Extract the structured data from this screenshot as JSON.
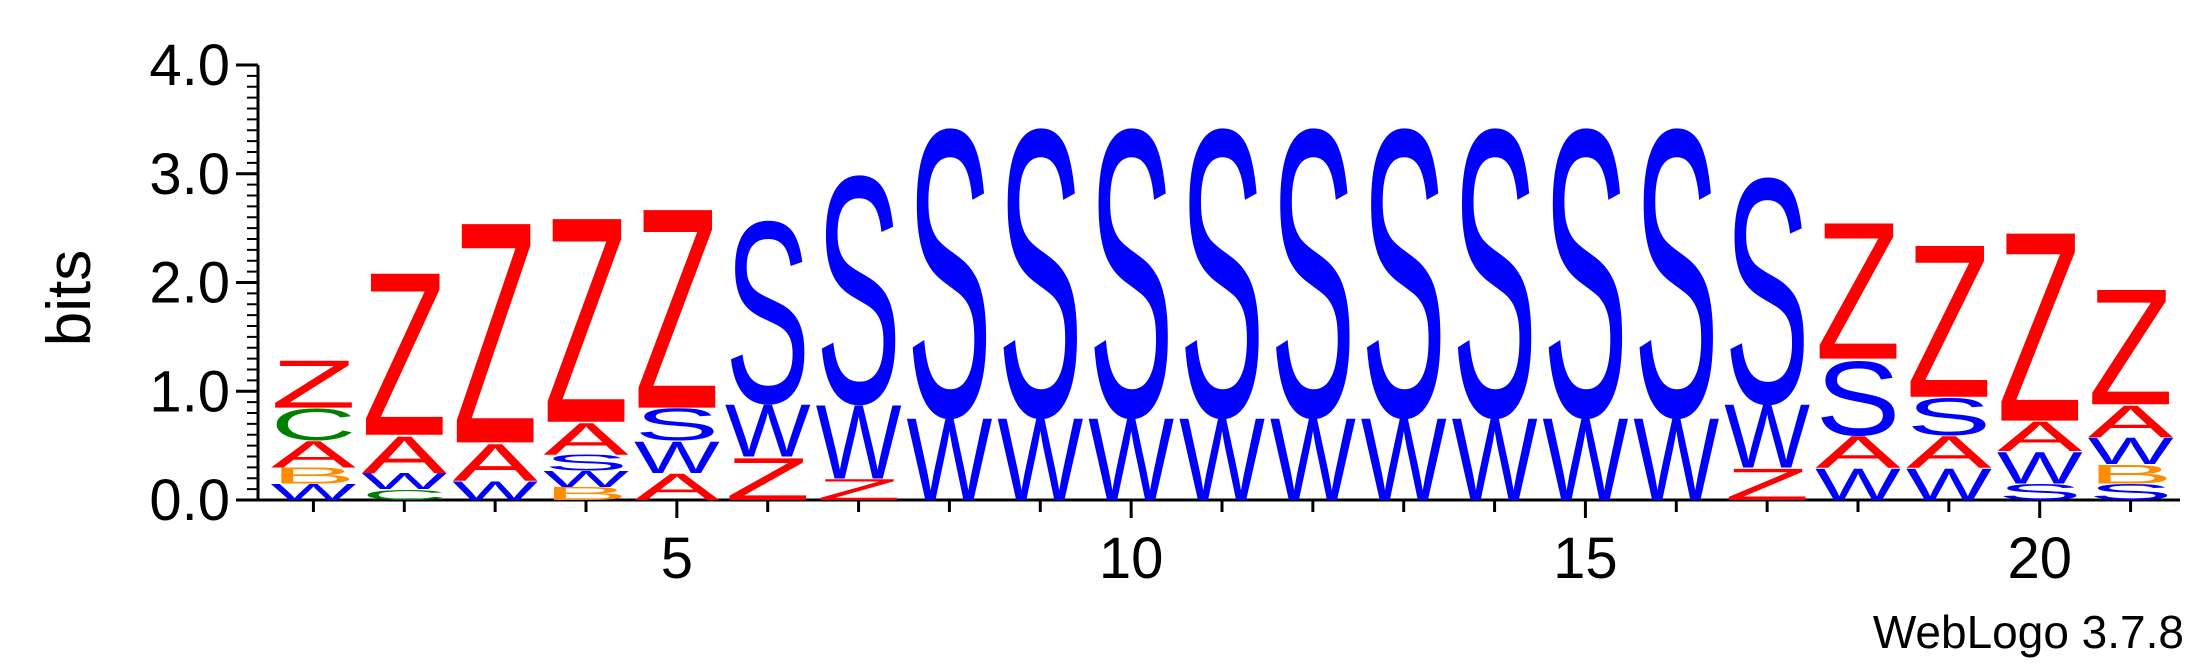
{
  "chart_data": {
    "type": "sequence-logo",
    "ylabel": "bits",
    "ylim": [
      0,
      4.0
    ],
    "y_ticks": [
      "0.0",
      "1.0",
      "2.0",
      "3.0",
      "4.0"
    ],
    "x_range": [
      1,
      21
    ],
    "x_ticks": [
      "5",
      "10",
      "15",
      "20"
    ],
    "colors": {
      "Z": "#ff0000",
      "A": "#ff0000",
      "S": "#0000ff",
      "W": "#0000ff",
      "C": "#008000",
      "B": "#ff8c00"
    },
    "positions": [
      {
        "pos": 1,
        "stack": [
          [
            "W",
            0.15
          ],
          [
            "B",
            0.15
          ],
          [
            "A",
            0.25
          ],
          [
            "C",
            0.3
          ],
          [
            "Z",
            0.45
          ]
        ]
      },
      {
        "pos": 2,
        "stack": [
          [
            "C",
            0.1
          ],
          [
            "W",
            0.15
          ],
          [
            "A",
            0.35
          ],
          [
            "Z",
            1.55
          ]
        ]
      },
      {
        "pos": 3,
        "stack": [
          [
            "W",
            0.18
          ],
          [
            "A",
            0.35
          ],
          [
            "Z",
            2.1
          ]
        ]
      },
      {
        "pos": 4,
        "stack": [
          [
            "B",
            0.12
          ],
          [
            "W",
            0.15
          ],
          [
            "S",
            0.15
          ],
          [
            "A",
            0.3
          ],
          [
            "Z",
            1.95
          ]
        ]
      },
      {
        "pos": 5,
        "stack": [
          [
            "A",
            0.25
          ],
          [
            "W",
            0.3
          ],
          [
            "S",
            0.3
          ],
          [
            "Z",
            1.9
          ]
        ]
      },
      {
        "pos": 6,
        "stack": [
          [
            "Z",
            0.4
          ],
          [
            "W",
            0.5
          ],
          [
            "S",
            1.72
          ]
        ]
      },
      {
        "pos": 7,
        "stack": [
          [
            "Z",
            0.2
          ],
          [
            "W",
            0.7
          ],
          [
            "S",
            2.15
          ]
        ]
      },
      {
        "pos": 8,
        "stack": [
          [
            "W",
            0.78
          ],
          [
            "S",
            2.72
          ]
        ]
      },
      {
        "pos": 9,
        "stack": [
          [
            "W",
            0.78
          ],
          [
            "S",
            2.72
          ]
        ]
      },
      {
        "pos": 10,
        "stack": [
          [
            "W",
            0.78
          ],
          [
            "S",
            2.72
          ]
        ]
      },
      {
        "pos": 11,
        "stack": [
          [
            "W",
            0.78
          ],
          [
            "S",
            2.72
          ]
        ]
      },
      {
        "pos": 12,
        "stack": [
          [
            "W",
            0.78
          ],
          [
            "S",
            2.72
          ]
        ]
      },
      {
        "pos": 13,
        "stack": [
          [
            "W",
            0.78
          ],
          [
            "S",
            2.72
          ]
        ]
      },
      {
        "pos": 14,
        "stack": [
          [
            "W",
            0.78
          ],
          [
            "S",
            2.72
          ]
        ]
      },
      {
        "pos": 15,
        "stack": [
          [
            "W",
            0.78
          ],
          [
            "S",
            2.72
          ]
        ]
      },
      {
        "pos": 16,
        "stack": [
          [
            "W",
            0.78
          ],
          [
            "S",
            2.72
          ]
        ]
      },
      {
        "pos": 17,
        "stack": [
          [
            "Z",
            0.3
          ],
          [
            "W",
            0.6
          ],
          [
            "S",
            2.13
          ]
        ]
      },
      {
        "pos": 18,
        "stack": [
          [
            "W",
            0.3
          ],
          [
            "A",
            0.3
          ],
          [
            "S",
            0.7
          ],
          [
            "Z",
            1.3
          ]
        ]
      },
      {
        "pos": 19,
        "stack": [
          [
            "W",
            0.3
          ],
          [
            "A",
            0.3
          ],
          [
            "S",
            0.35
          ],
          [
            "Z",
            1.45
          ]
        ]
      },
      {
        "pos": 20,
        "stack": [
          [
            "S",
            0.15
          ],
          [
            "W",
            0.3
          ],
          [
            "A",
            0.28
          ],
          [
            "Z",
            1.8
          ]
        ]
      },
      {
        "pos": 21,
        "stack": [
          [
            "S",
            0.15
          ],
          [
            "B",
            0.18
          ],
          [
            "W",
            0.25
          ],
          [
            "A",
            0.3
          ],
          [
            "Z",
            1.1
          ]
        ]
      }
    ]
  },
  "footer": {
    "credit": "WebLogo 3.7.8"
  }
}
